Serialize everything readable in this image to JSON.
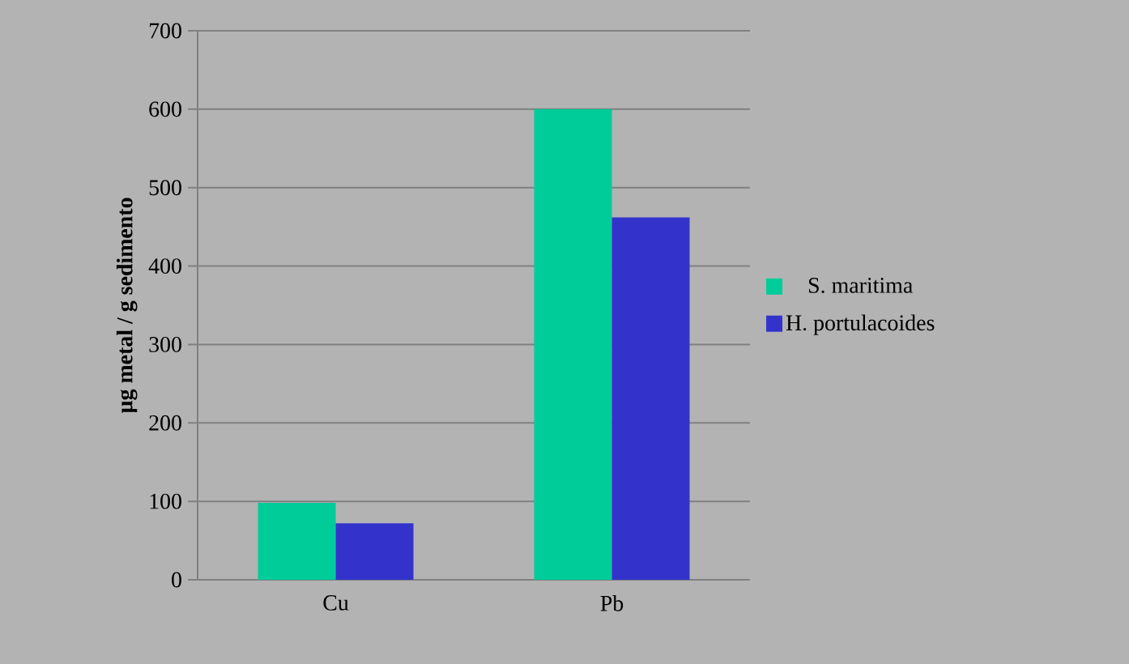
{
  "chart_data": {
    "type": "bar",
    "ylabel": "µg metal / g sedimento",
    "categories": [
      "Cu",
      "Pb"
    ],
    "series": [
      {
        "name": "S. maritima",
        "color": "#00cc99",
        "values": [
          98,
          600
        ]
      },
      {
        "name": "H. portulacoides",
        "color": "#3333cc",
        "values": [
          72,
          462
        ]
      }
    ],
    "ylim": [
      0,
      700
    ],
    "yticks": [
      0,
      100,
      200,
      300,
      400,
      500,
      600,
      700
    ],
    "grid": "y",
    "legend": "right"
  }
}
